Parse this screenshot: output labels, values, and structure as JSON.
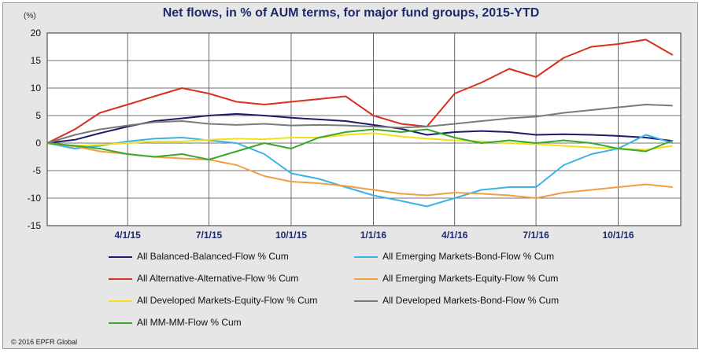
{
  "unit": "(%)",
  "copyright": "© 2016 EPFR Global",
  "chart_data": {
    "type": "line",
    "title": "Net flows, in % of AUM terms, for major fund groups, 2015-YTD",
    "ylim": [
      -15,
      20
    ],
    "y_ticks": [
      20,
      15,
      10,
      5,
      0,
      -5,
      -10,
      -15
    ],
    "xlim": [
      "2015-01-01",
      "2016-12-10"
    ],
    "x_ticks": [
      {
        "date": "2015-04-01",
        "label": "4/1/15"
      },
      {
        "date": "2015-07-01",
        "label": "7/1/15"
      },
      {
        "date": "2015-10-01",
        "label": "10/1/15"
      },
      {
        "date": "2016-01-01",
        "label": "1/1/16"
      },
      {
        "date": "2016-04-01",
        "label": "4/1/16"
      },
      {
        "date": "2016-07-01",
        "label": "7/1/16"
      },
      {
        "date": "2016-10-01",
        "label": "10/1/16"
      }
    ],
    "grid": true,
    "legend_position": "bottom",
    "series": [
      {
        "name": "All Balanced-Balanced-Flow % Cum",
        "color": "#1c1c6e",
        "points": [
          [
            "2015-01-01",
            0
          ],
          [
            "2015-02-01",
            0.6
          ],
          [
            "2015-03-01",
            1.8
          ],
          [
            "2015-04-01",
            3.0
          ],
          [
            "2015-05-01",
            4.0
          ],
          [
            "2015-06-01",
            4.5
          ],
          [
            "2015-07-01",
            5.0
          ],
          [
            "2015-08-01",
            5.3
          ],
          [
            "2015-09-01",
            5.0
          ],
          [
            "2015-10-01",
            4.6
          ],
          [
            "2015-11-01",
            4.3
          ],
          [
            "2015-12-01",
            4.0
          ],
          [
            "2016-01-01",
            3.3
          ],
          [
            "2016-02-01",
            2.6
          ],
          [
            "2016-03-01",
            1.5
          ],
          [
            "2016-04-01",
            2.0
          ],
          [
            "2016-05-01",
            2.2
          ],
          [
            "2016-06-01",
            2.0
          ],
          [
            "2016-07-01",
            1.5
          ],
          [
            "2016-08-01",
            1.6
          ],
          [
            "2016-09-01",
            1.5
          ],
          [
            "2016-10-01",
            1.3
          ],
          [
            "2016-11-01",
            1.0
          ],
          [
            "2016-12-01",
            0.4
          ]
        ]
      },
      {
        "name": "All Emerging Markets-Bond-Flow % Cum",
        "color": "#3bb2e6",
        "points": [
          [
            "2015-01-01",
            0
          ],
          [
            "2015-02-01",
            -1.0
          ],
          [
            "2015-03-01",
            -0.5
          ],
          [
            "2015-04-01",
            0.3
          ],
          [
            "2015-05-01",
            0.8
          ],
          [
            "2015-06-01",
            1.0
          ],
          [
            "2015-07-01",
            0.5
          ],
          [
            "2015-08-01",
            0.0
          ],
          [
            "2015-09-01",
            -2.0
          ],
          [
            "2015-10-01",
            -5.5
          ],
          [
            "2015-11-01",
            -6.5
          ],
          [
            "2015-12-01",
            -8.0
          ],
          [
            "2016-01-01",
            -9.5
          ],
          [
            "2016-02-01",
            -10.5
          ],
          [
            "2016-03-01",
            -11.5
          ],
          [
            "2016-04-01",
            -10.0
          ],
          [
            "2016-05-01",
            -8.5
          ],
          [
            "2016-06-01",
            -8.0
          ],
          [
            "2016-07-01",
            -8.0
          ],
          [
            "2016-08-01",
            -4.0
          ],
          [
            "2016-09-01",
            -2.0
          ],
          [
            "2016-10-01",
            -1.0
          ],
          [
            "2016-11-01",
            1.5
          ],
          [
            "2016-12-01",
            0.0
          ]
        ]
      },
      {
        "name": "All Alternative-Alternative-Flow % Cum",
        "color": "#d7301f",
        "points": [
          [
            "2015-01-01",
            0
          ],
          [
            "2015-02-01",
            2.5
          ],
          [
            "2015-03-01",
            5.5
          ],
          [
            "2015-04-01",
            7.0
          ],
          [
            "2015-05-01",
            8.5
          ],
          [
            "2015-06-01",
            10.0
          ],
          [
            "2015-07-01",
            9.0
          ],
          [
            "2015-08-01",
            7.5
          ],
          [
            "2015-09-01",
            7.0
          ],
          [
            "2015-10-01",
            7.5
          ],
          [
            "2015-11-01",
            8.0
          ],
          [
            "2015-12-01",
            8.5
          ],
          [
            "2016-01-01",
            5.0
          ],
          [
            "2016-02-01",
            3.5
          ],
          [
            "2016-03-01",
            3.0
          ],
          [
            "2016-04-01",
            9.0
          ],
          [
            "2016-05-01",
            11.0
          ],
          [
            "2016-06-01",
            13.5
          ],
          [
            "2016-07-01",
            12.0
          ],
          [
            "2016-08-01",
            15.5
          ],
          [
            "2016-09-01",
            17.5
          ],
          [
            "2016-10-01",
            18.0
          ],
          [
            "2016-11-01",
            18.8
          ],
          [
            "2016-12-01",
            16.0
          ]
        ]
      },
      {
        "name": "All Emerging Markets-Equity-Flow % Cum",
        "color": "#f0a040",
        "points": [
          [
            "2015-01-01",
            0
          ],
          [
            "2015-02-01",
            -0.6
          ],
          [
            "2015-03-01",
            -1.5
          ],
          [
            "2015-04-01",
            -2.0
          ],
          [
            "2015-05-01",
            -2.5
          ],
          [
            "2015-06-01",
            -2.8
          ],
          [
            "2015-07-01",
            -3.0
          ],
          [
            "2015-08-01",
            -4.0
          ],
          [
            "2015-09-01",
            -6.0
          ],
          [
            "2015-10-01",
            -7.0
          ],
          [
            "2015-11-01",
            -7.3
          ],
          [
            "2015-12-01",
            -7.8
          ],
          [
            "2016-01-01",
            -8.5
          ],
          [
            "2016-02-01",
            -9.2
          ],
          [
            "2016-03-01",
            -9.5
          ],
          [
            "2016-04-01",
            -9.0
          ],
          [
            "2016-05-01",
            -9.2
          ],
          [
            "2016-06-01",
            -9.5
          ],
          [
            "2016-07-01",
            -10.0
          ],
          [
            "2016-08-01",
            -9.0
          ],
          [
            "2016-09-01",
            -8.5
          ],
          [
            "2016-10-01",
            -8.0
          ],
          [
            "2016-11-01",
            -7.5
          ],
          [
            "2016-12-01",
            -8.0
          ]
        ]
      },
      {
        "name": "All Developed Markets-Equity-Flow % Cum",
        "color": "#f2e01a",
        "points": [
          [
            "2015-01-01",
            0
          ],
          [
            "2015-02-01",
            -0.5
          ],
          [
            "2015-03-01",
            -0.3
          ],
          [
            "2015-04-01",
            0.0
          ],
          [
            "2015-05-01",
            0.3
          ],
          [
            "2015-06-01",
            0.3
          ],
          [
            "2015-07-01",
            0.6
          ],
          [
            "2015-08-01",
            0.8
          ],
          [
            "2015-09-01",
            0.7
          ],
          [
            "2015-10-01",
            1.0
          ],
          [
            "2015-11-01",
            1.0
          ],
          [
            "2015-12-01",
            1.5
          ],
          [
            "2016-01-01",
            1.8
          ],
          [
            "2016-02-01",
            1.2
          ],
          [
            "2016-03-01",
            0.8
          ],
          [
            "2016-04-01",
            0.5
          ],
          [
            "2016-05-01",
            0.3
          ],
          [
            "2016-06-01",
            0.0
          ],
          [
            "2016-07-01",
            -0.2
          ],
          [
            "2016-08-01",
            -0.5
          ],
          [
            "2016-09-01",
            -0.8
          ],
          [
            "2016-10-01",
            -1.0
          ],
          [
            "2016-11-01",
            -1.2
          ],
          [
            "2016-12-01",
            -0.5
          ]
        ]
      },
      {
        "name": "All Developed Markets-Bond-Flow % Cum",
        "color": "#7a7a7a",
        "points": [
          [
            "2015-01-01",
            0
          ],
          [
            "2015-02-01",
            1.5
          ],
          [
            "2015-03-01",
            2.5
          ],
          [
            "2015-04-01",
            3.2
          ],
          [
            "2015-05-01",
            3.8
          ],
          [
            "2015-06-01",
            4.0
          ],
          [
            "2015-07-01",
            3.5
          ],
          [
            "2015-08-01",
            3.3
          ],
          [
            "2015-09-01",
            3.5
          ],
          [
            "2015-10-01",
            3.2
          ],
          [
            "2015-11-01",
            3.3
          ],
          [
            "2015-12-01",
            3.2
          ],
          [
            "2016-01-01",
            3.0
          ],
          [
            "2016-02-01",
            2.8
          ],
          [
            "2016-03-01",
            3.0
          ],
          [
            "2016-04-01",
            3.5
          ],
          [
            "2016-05-01",
            4.0
          ],
          [
            "2016-06-01",
            4.5
          ],
          [
            "2016-07-01",
            4.8
          ],
          [
            "2016-08-01",
            5.5
          ],
          [
            "2016-09-01",
            6.0
          ],
          [
            "2016-10-01",
            6.5
          ],
          [
            "2016-11-01",
            7.0
          ],
          [
            "2016-12-01",
            6.8
          ]
        ]
      },
      {
        "name": "All MM-MM-Flow % Cum",
        "color": "#3aa82e",
        "points": [
          [
            "2015-01-01",
            0
          ],
          [
            "2015-02-01",
            -0.5
          ],
          [
            "2015-03-01",
            -1.0
          ],
          [
            "2015-04-01",
            -2.0
          ],
          [
            "2015-05-01",
            -2.5
          ],
          [
            "2015-06-01",
            -2.0
          ],
          [
            "2015-07-01",
            -3.0
          ],
          [
            "2015-08-01",
            -1.5
          ],
          [
            "2015-09-01",
            0.0
          ],
          [
            "2015-10-01",
            -1.0
          ],
          [
            "2015-11-01",
            1.0
          ],
          [
            "2015-12-01",
            2.0
          ],
          [
            "2016-01-01",
            2.5
          ],
          [
            "2016-02-01",
            2.0
          ],
          [
            "2016-03-01",
            2.5
          ],
          [
            "2016-04-01",
            1.0
          ],
          [
            "2016-05-01",
            0.0
          ],
          [
            "2016-06-01",
            0.5
          ],
          [
            "2016-07-01",
            0.0
          ],
          [
            "2016-08-01",
            0.5
          ],
          [
            "2016-09-01",
            0.0
          ],
          [
            "2016-10-01",
            -1.0
          ],
          [
            "2016-11-01",
            -1.5
          ],
          [
            "2016-12-01",
            0.5
          ]
        ]
      }
    ]
  }
}
